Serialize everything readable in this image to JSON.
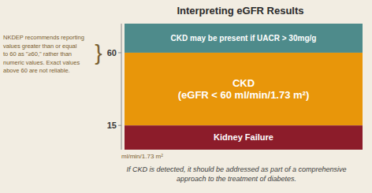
{
  "chart_data": {
    "type": "bar",
    "title": "Interpreting eGFR Results",
    "categories": [
      null
    ],
    "series": [
      {
        "name": "CKD may be present if UACR > 30mg/g",
        "color": "#4e8b8b",
        "values": [
          18
        ],
        "bottoms": [
          60
        ]
      },
      {
        "name": "CKD\n(eGFR < 60 ml/min/1.73 m²)",
        "color": "#e8960a",
        "values": [
          45
        ],
        "bottoms": [
          15
        ]
      },
      {
        "name": "Kidney Failure",
        "color": "#8c1c2a",
        "values": [
          15
        ],
        "bottoms": [
          0
        ]
      }
    ],
    "ylim": [
      0,
      78
    ],
    "yticks": [
      15,
      60
    ],
    "y_label": "ml/min/1.73 m²",
    "note": "NKDEP recommends reporting\nvalues greater than or equal\nto 60 as \"≥60,\" rather than\nnumeric values. Exact values\nabove 60 are not reliable.",
    "brace": "}",
    "footnote": "If CKD is detected, it should be addressed as part of a comprehensive\napproach to the treatment of diabetes.",
    "tick_labels": "y",
    "grid": false
  }
}
